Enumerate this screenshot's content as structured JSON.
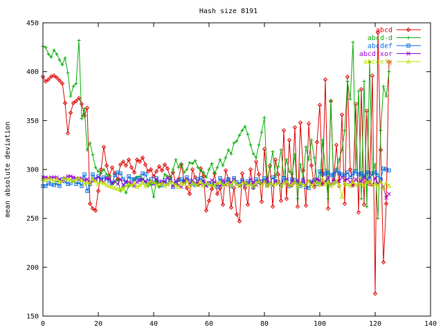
{
  "chart_data": {
    "type": "line",
    "title": "Hash size 8191",
    "xlabel": "",
    "ylabel": "mean absolute deviation",
    "xlim": [
      0,
      140
    ],
    "ylim": [
      150,
      450
    ],
    "xticks": [
      0,
      20,
      40,
      60,
      80,
      100,
      120,
      140
    ],
    "yticks": [
      150,
      200,
      250,
      300,
      350,
      400,
      450
    ],
    "grid": false,
    "legend_position": "top-right",
    "series": [
      {
        "name": "abcd",
        "color": "#dd0000",
        "marker": "diamond",
        "x": [
          0,
          1,
          2,
          3,
          4,
          5,
          6,
          7,
          8,
          9,
          10,
          11,
          12,
          13,
          14,
          15,
          16,
          17,
          18,
          19,
          20,
          21,
          22,
          23,
          24,
          25,
          26,
          27,
          28,
          29,
          30,
          31,
          32,
          33,
          34,
          35,
          36,
          37,
          38,
          39,
          40,
          41,
          42,
          43,
          44,
          45,
          46,
          47,
          48,
          49,
          50,
          51,
          52,
          53,
          54,
          55,
          56,
          57,
          58,
          59,
          60,
          61,
          62,
          63,
          64,
          65,
          66,
          67,
          68,
          69,
          70,
          71,
          72,
          73,
          74,
          75,
          76,
          77,
          78,
          79,
          80,
          81,
          82,
          83,
          84,
          85,
          86,
          87,
          88,
          89,
          90,
          91,
          92,
          93,
          94,
          95,
          96,
          97,
          98,
          99,
          100,
          101,
          102,
          103,
          104,
          105,
          106,
          107,
          108,
          109,
          110,
          111,
          112,
          113,
          114,
          115,
          116,
          117,
          118,
          119,
          120,
          121,
          122,
          123,
          124,
          125
        ],
        "y": [
          395,
          390,
          392,
          395,
          396,
          394,
          391,
          388,
          368,
          337,
          358,
          368,
          370,
          373,
          367,
          355,
          363,
          265,
          260,
          258,
          278,
          300,
          323,
          304,
          293,
          302,
          296,
          290,
          305,
          308,
          304,
          310,
          302,
          297,
          310,
          308,
          312,
          305,
          298,
          300,
          293,
          298,
          303,
          299,
          305,
          301,
          292,
          297,
          286,
          290,
          305,
          288,
          281,
          275,
          300,
          292,
          285,
          301,
          293,
          258,
          268,
          280,
          296,
          275,
          281,
          264,
          299,
          290,
          261,
          281,
          254,
          247,
          296,
          281,
          264,
          300,
          281,
          308,
          295,
          267,
          321,
          286,
          304,
          262,
          310,
          295,
          268,
          340,
          270,
          330,
          284,
          343,
          262,
          348,
          299,
          263,
          347,
          304,
          282,
          328,
          366,
          285,
          392,
          260,
          370,
          289,
          325,
          283,
          356,
          265,
          395,
          300,
          284,
          367,
          256,
          382,
          264,
          360,
          285,
          396,
          173,
          440,
          320,
          205,
          265,
          410
        ]
      },
      {
        "name": "abcd-d",
        "color": "#00aa00",
        "marker": "plus",
        "x": [
          0,
          1,
          2,
          3,
          4,
          5,
          6,
          7,
          8,
          9,
          10,
          11,
          12,
          13,
          14,
          15,
          16,
          17,
          18,
          19,
          20,
          21,
          22,
          23,
          24,
          25,
          26,
          27,
          28,
          29,
          30,
          31,
          32,
          33,
          34,
          35,
          36,
          37,
          38,
          39,
          40,
          41,
          42,
          43,
          44,
          45,
          46,
          47,
          48,
          49,
          50,
          51,
          52,
          53,
          54,
          55,
          56,
          57,
          58,
          59,
          60,
          61,
          62,
          63,
          64,
          65,
          66,
          67,
          68,
          69,
          70,
          71,
          72,
          73,
          74,
          75,
          76,
          77,
          78,
          79,
          80,
          81,
          82,
          83,
          84,
          85,
          86,
          87,
          88,
          89,
          90,
          91,
          92,
          93,
          94,
          95,
          96,
          97,
          98,
          99,
          100,
          101,
          102,
          103,
          104,
          105,
          106,
          107,
          108,
          109,
          110,
          111,
          112,
          113,
          114,
          115,
          116,
          117,
          118,
          119,
          120,
          121,
          122,
          123,
          124,
          125
        ],
        "y": [
          426,
          425,
          418,
          415,
          422,
          418,
          412,
          407,
          414,
          399,
          375,
          385,
          388,
          432,
          352,
          362,
          320,
          327,
          315,
          302,
          298,
          296,
          300,
          295,
          294,
          285,
          287,
          290,
          278,
          282,
          276,
          283,
          285,
          290,
          292,
          293,
          290,
          287,
          283,
          285,
          272,
          288,
          282,
          285,
          295,
          293,
          290,
          300,
          310,
          302,
          306,
          297,
          300,
          307,
          306,
          309,
          302,
          299,
          297,
          292,
          300,
          306,
          296,
          302,
          310,
          304,
          312,
          320,
          316,
          327,
          329,
          335,
          340,
          344,
          336,
          325,
          316,
          312,
          325,
          338,
          353,
          290,
          302,
          318,
          292,
          303,
          320,
          293,
          310,
          298,
          295,
          315,
          270,
          305,
          291,
          323,
          310,
          330,
          312,
          290,
          285,
          330,
          300,
          270,
          370,
          285,
          300,
          310,
          320,
          340,
          390,
          372,
          430,
          300,
          380,
          270,
          390,
          262,
          410,
          295,
          305,
          250,
          340,
          385,
          375,
          400
        ]
      },
      {
        "name": "abcdef",
        "color": "#0066dd",
        "marker": "square",
        "x": [
          0,
          1,
          2,
          3,
          4,
          5,
          6,
          7,
          8,
          9,
          10,
          11,
          12,
          13,
          14,
          15,
          16,
          17,
          18,
          19,
          20,
          21,
          22,
          23,
          24,
          25,
          26,
          27,
          28,
          29,
          30,
          31,
          32,
          33,
          34,
          35,
          36,
          37,
          38,
          39,
          40,
          41,
          42,
          43,
          44,
          45,
          46,
          47,
          48,
          49,
          50,
          51,
          52,
          53,
          54,
          55,
          56,
          57,
          58,
          59,
          60,
          61,
          62,
          63,
          64,
          65,
          66,
          67,
          68,
          69,
          70,
          71,
          72,
          73,
          74,
          75,
          76,
          77,
          78,
          79,
          80,
          81,
          82,
          83,
          84,
          85,
          86,
          87,
          88,
          89,
          90,
          91,
          92,
          93,
          94,
          95,
          96,
          97,
          98,
          99,
          100,
          101,
          102,
          103,
          104,
          105,
          106,
          107,
          108,
          109,
          110,
          111,
          112,
          113,
          114,
          115,
          116,
          117,
          118,
          119,
          120,
          121,
          122,
          123,
          124,
          125
        ],
        "y": [
          283,
          283,
          286,
          285,
          284,
          286,
          283,
          290,
          288,
          285,
          286,
          289,
          285,
          287,
          283,
          295,
          278,
          285,
          295,
          290,
          293,
          290,
          292,
          291,
          288,
          286,
          294,
          297,
          296,
          290,
          285,
          293,
          290,
          290,
          291,
          289,
          296,
          295,
          288,
          290,
          286,
          291,
          287,
          284,
          289,
          285,
          289,
          282,
          286,
          289,
          290,
          287,
          292,
          288,
          285,
          284,
          290,
          291,
          287,
          284,
          286,
          285,
          283,
          282,
          291,
          285,
          287,
          290,
          283,
          291,
          287,
          285,
          289,
          284,
          288,
          286,
          282,
          290,
          287,
          288,
          291,
          284,
          286,
          292,
          288,
          287,
          284,
          291,
          289,
          283,
          290,
          289,
          286,
          283,
          288,
          282,
          281,
          287,
          289,
          285,
          298,
          295,
          296,
          297,
          294,
          295,
          299,
          296,
          295,
          294,
          297,
          292,
          296,
          298,
          295,
          296,
          293,
          297,
          290,
          296,
          297,
          294,
          290,
          301,
          300,
          299
        ]
      },
      {
        "name": "abcd xor",
        "color": "#9900cc",
        "marker": "x",
        "x": [
          0,
          1,
          2,
          3,
          4,
          5,
          6,
          7,
          8,
          9,
          10,
          11,
          12,
          13,
          14,
          15,
          16,
          17,
          18,
          19,
          20,
          21,
          22,
          23,
          24,
          25,
          26,
          27,
          28,
          29,
          30,
          31,
          32,
          33,
          34,
          35,
          36,
          37,
          38,
          39,
          40,
          41,
          42,
          43,
          44,
          45,
          46,
          47,
          48,
          49,
          50,
          51,
          52,
          53,
          54,
          55,
          56,
          57,
          58,
          59,
          60,
          61,
          62,
          63,
          64,
          65,
          66,
          67,
          68,
          69,
          70,
          71,
          72,
          73,
          74,
          75,
          76,
          77,
          78,
          79,
          80,
          81,
          82,
          83,
          84,
          85,
          86,
          87,
          88,
          89,
          90,
          91,
          92,
          93,
          94,
          95,
          96,
          97,
          98,
          99,
          100,
          101,
          102,
          103,
          104,
          105,
          106,
          107,
          108,
          109,
          110,
          111,
          112,
          113,
          114,
          115,
          116,
          117,
          118,
          119,
          120,
          121,
          122,
          123,
          124,
          125
        ],
        "y": [
          292,
          292,
          291,
          292,
          292,
          292,
          290,
          288,
          291,
          293,
          293,
          292,
          291,
          290,
          291,
          289,
          290,
          286,
          288,
          290,
          292,
          289,
          287,
          291,
          290,
          286,
          288,
          285,
          290,
          284,
          288,
          287,
          286,
          283,
          287,
          289,
          290,
          288,
          286,
          287,
          285,
          290,
          286,
          288,
          287,
          291,
          289,
          283,
          288,
          284,
          282,
          287,
          290,
          285,
          289,
          286,
          284,
          285,
          288,
          283,
          286,
          289,
          287,
          285,
          283,
          289,
          284,
          286,
          287,
          290,
          285,
          283,
          288,
          286,
          285,
          290,
          287,
          284,
          288,
          286,
          287,
          290,
          285,
          283,
          288,
          286,
          285,
          287,
          290,
          284,
          288,
          286,
          289,
          285,
          290,
          284,
          288,
          287,
          286,
          290,
          289,
          285,
          288,
          292,
          284,
          290,
          287,
          288,
          292,
          289,
          290,
          287,
          284,
          290,
          286,
          288,
          292,
          289,
          287,
          284,
          291,
          286,
          288,
          282,
          271,
          275
        ]
      },
      {
        "name": "abcdefg",
        "color": "#bbdd00",
        "marker": "triangle",
        "x": [
          0,
          1,
          2,
          3,
          4,
          5,
          6,
          7,
          8,
          9,
          10,
          11,
          12,
          13,
          14,
          15,
          16,
          17,
          18,
          19,
          20,
          21,
          22,
          23,
          24,
          25,
          26,
          27,
          28,
          29,
          30,
          31,
          32,
          33,
          34,
          35,
          36,
          37,
          38,
          39,
          40,
          41,
          42,
          43,
          44,
          45,
          46,
          47,
          48,
          49,
          50,
          51,
          52,
          53,
          54,
          55,
          56,
          57,
          58,
          59,
          60,
          61,
          62,
          63,
          64,
          65,
          66,
          67,
          68,
          69,
          70,
          71,
          72,
          73,
          74,
          75,
          76,
          77,
          78,
          79,
          80,
          81,
          82,
          83,
          84,
          85,
          86,
          87,
          88,
          89,
          90,
          91,
          92,
          93,
          94,
          95,
          96,
          97,
          98,
          99,
          100,
          101,
          102,
          103,
          104,
          105,
          106,
          107,
          108,
          109,
          110,
          111,
          112,
          113,
          114,
          115,
          116,
          117,
          118,
          119,
          120,
          121,
          122,
          123,
          124,
          125
        ],
        "y": [
          290,
          289,
          291,
          290,
          288,
          290,
          287,
          289,
          291,
          290,
          289,
          288,
          290,
          291,
          289,
          285,
          287,
          286,
          290,
          288,
          285,
          287,
          286,
          284,
          283,
          282,
          281,
          280,
          279,
          280,
          283,
          285,
          284,
          286,
          282,
          284,
          286,
          283,
          285,
          288,
          287,
          284,
          285,
          286,
          283,
          285,
          287,
          286,
          284,
          282,
          286,
          285,
          288,
          283,
          286,
          285,
          284,
          287,
          283,
          286,
          285,
          284,
          283,
          286,
          287,
          284,
          285,
          286,
          284,
          288,
          285,
          283,
          286,
          287,
          284,
          285,
          283,
          286,
          288,
          284,
          287,
          283,
          286,
          284,
          285,
          287,
          283,
          286,
          288,
          284,
          285,
          287,
          283,
          286,
          284,
          285,
          288,
          283,
          286,
          287,
          284,
          290,
          285,
          287,
          283,
          286,
          288,
          284,
          272,
          286,
          285,
          283,
          287,
          284,
          286,
          285,
          283,
          287,
          288,
          284,
          285,
          283,
          287,
          280,
          286,
          283
        ]
      }
    ]
  }
}
